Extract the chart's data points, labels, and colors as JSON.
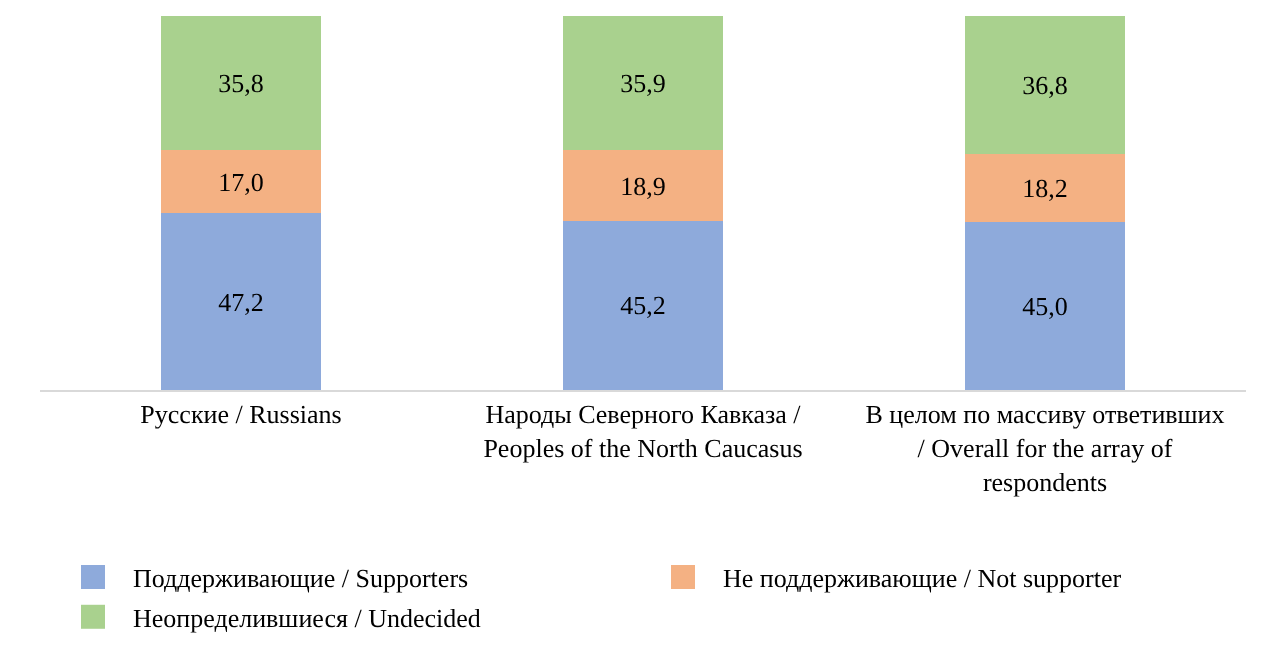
{
  "chart_data": {
    "type": "bar",
    "stacked": true,
    "categories": [
      "Русские / Russians",
      "Народы Северного Кавказа / Peoples of the North Caucasus",
      "В целом по массиву ответивших / Overall for the array of respondents"
    ],
    "series": [
      {
        "name": "Поддерживающие / Supporters",
        "color": "#8eaadb",
        "values": [
          47.2,
          45.2,
          45.0
        ],
        "value_labels": [
          "47,2",
          "45,2",
          "45,0"
        ]
      },
      {
        "name": "Не поддерживающие / Not supporter",
        "color": "#f4b183",
        "values": [
          17.0,
          18.9,
          18.2
        ],
        "value_labels": [
          "17,0",
          "18,9",
          "18,2"
        ]
      },
      {
        "name": "Неопределившиеся / Undecided",
        "color": "#a9d18e",
        "values": [
          35.8,
          35.9,
          36.8
        ],
        "value_labels": [
          "35,8",
          "35,9",
          "36,8"
        ]
      }
    ],
    "ylim": [
      0,
      100
    ],
    "tick_labels": "x",
    "legend": "bottom"
  }
}
